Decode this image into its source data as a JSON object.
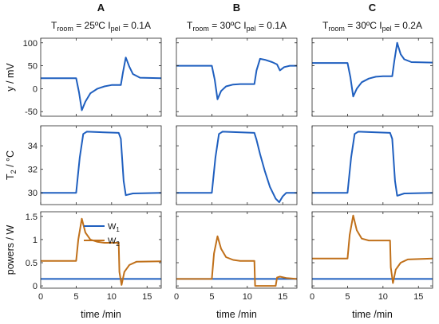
{
  "chart_data": {
    "type": "line",
    "columns": [
      {
        "letter": "A",
        "title": {
          "T": "T",
          "T_sub": "room",
          "T_val": " = 25ºC  ",
          "I": "I",
          "I_sub": "pel",
          "I_val": " = 0.1A"
        }
      },
      {
        "letter": "B",
        "title": {
          "T": "T",
          "T_sub": "room",
          "T_val": " = 30ºC  ",
          "I": "I",
          "I_sub": "pel",
          "I_val": " = 0.1A"
        }
      },
      {
        "letter": "C",
        "title": {
          "T": "T",
          "T_sub": "room",
          "T_val": " = 30ºC  ",
          "I": "I",
          "I_sub": "pel",
          "I_val": " = 0.2A"
        }
      }
    ],
    "xlabel": "time /min",
    "xlim": [
      0,
      17
    ],
    "xticks": [
      "0",
      "5",
      "10",
      "15"
    ],
    "rows": [
      {
        "ylabel": "y / mV",
        "ylim": [
          -60,
          110
        ],
        "yticks": [
          "100",
          "50",
          "0",
          "-50"
        ],
        "series": [
          {
            "color": "#1f5fbf",
            "panels": [
              [
                [
                  0,
                  23
                ],
                [
                  5,
                  23
                ],
                [
                  5.4,
                  -8
                ],
                [
                  5.8,
                  -47
                ],
                [
                  6.3,
                  -28
                ],
                [
                  7,
                  -10
                ],
                [
                  8,
                  0
                ],
                [
                  9,
                  5
                ],
                [
                  10,
                  8
                ],
                [
                  11.3,
                  8
                ],
                [
                  11.6,
                  35
                ],
                [
                  12,
                  68
                ],
                [
                  12.5,
                  48
                ],
                [
                  13,
                  32
                ],
                [
                  14,
                  24
                ],
                [
                  17,
                  23
                ]
              ],
              [
                [
                  0,
                  50
                ],
                [
                  5,
                  50
                ],
                [
                  5.4,
                  20
                ],
                [
                  5.8,
                  -23
                ],
                [
                  6.3,
                  -5
                ],
                [
                  7,
                  5
                ],
                [
                  8,
                  9
                ],
                [
                  9,
                  10
                ],
                [
                  10,
                  10
                ],
                [
                  11,
                  10
                ],
                [
                  11.3,
                  40
                ],
                [
                  11.8,
                  65
                ],
                [
                  12.5,
                  63
                ],
                [
                  13.5,
                  58
                ],
                [
                  14.2,
                  53
                ],
                [
                  14.6,
                  40
                ],
                [
                  15.2,
                  47
                ],
                [
                  16,
                  50
                ],
                [
                  17,
                  50
                ]
              ],
              [
                [
                  0,
                  56
                ],
                [
                  5,
                  56
                ],
                [
                  5.4,
                  25
                ],
                [
                  5.8,
                  -17
                ],
                [
                  6.3,
                  0
                ],
                [
                  7,
                  14
                ],
                [
                  8,
                  22
                ],
                [
                  9,
                  26
                ],
                [
                  10,
                  27
                ],
                [
                  11.3,
                  27
                ],
                [
                  11.6,
                  60
                ],
                [
                  12,
                  100
                ],
                [
                  12.5,
                  75
                ],
                [
                  13,
                  64
                ],
                [
                  14,
                  58
                ],
                [
                  17,
                  57
                ]
              ]
            ]
          }
        ]
      },
      {
        "ylabel": "T",
        "ylabel_sub": "2",
        "ylabel_rest": " / °C",
        "ylim": [
          29,
          35.7
        ],
        "yticks": [
          "34",
          "32",
          "30"
        ],
        "series": [
          {
            "color": "#1f5fbf",
            "panels": [
              [
                [
                  0,
                  30
                ],
                [
                  5,
                  30
                ],
                [
                  5.5,
                  33
                ],
                [
                  6,
                  35
                ],
                [
                  6.5,
                  35.2
                ],
                [
                  11,
                  35.1
                ],
                [
                  11.3,
                  34.6
                ],
                [
                  11.7,
                  31
                ],
                [
                  12,
                  29.8
                ],
                [
                  13,
                  29.95
                ],
                [
                  17,
                  30
                ]
              ],
              [
                [
                  0,
                  30
                ],
                [
                  5,
                  30
                ],
                [
                  5.5,
                  33
                ],
                [
                  6,
                  35
                ],
                [
                  6.5,
                  35.2
                ],
                [
                  11,
                  35.1
                ],
                [
                  11.3,
                  34.5
                ],
                [
                  11.8,
                  33.3
                ],
                [
                  12.5,
                  31.8
                ],
                [
                  13.2,
                  30.5
                ],
                [
                  14,
                  29.5
                ],
                [
                  14.5,
                  29.2
                ],
                [
                  15,
                  29.7
                ],
                [
                  15.5,
                  30
                ],
                [
                  17,
                  30
                ]
              ],
              [
                [
                  0,
                  30
                ],
                [
                  5,
                  30
                ],
                [
                  5.5,
                  33
                ],
                [
                  6,
                  35
                ],
                [
                  6.5,
                  35.2
                ],
                [
                  11,
                  35.1
                ],
                [
                  11.3,
                  34.6
                ],
                [
                  11.7,
                  31
                ],
                [
                  12,
                  29.75
                ],
                [
                  13,
                  29.95
                ],
                [
                  17,
                  30
                ]
              ]
            ]
          }
        ]
      },
      {
        "ylabel": "powers / W",
        "ylim": [
          -0.05,
          1.6
        ],
        "yticks": [
          "1.5",
          "1",
          "0.5",
          "0"
        ],
        "legend": {
          "location": "upper-left-inset",
          "entries": [
            {
              "name": "W",
              "sub": "1",
              "color": "#1f5fbf"
            },
            {
              "name": "W",
              "sub": "2",
              "color": "#c0701a"
            }
          ]
        },
        "series": [
          {
            "name": "W1",
            "color": "#1f5fbf",
            "panels": [
              [
                [
                  0,
                  0.15
                ],
                [
                  17,
                  0.15
                ]
              ],
              [
                [
                  0,
                  0.15
                ],
                [
                  17,
                  0.15
                ]
              ],
              [
                [
                  0,
                  0.15
                ],
                [
                  17,
                  0.15
                ]
              ]
            ]
          },
          {
            "name": "W2",
            "color": "#c0701a",
            "panels": [
              [
                [
                  0,
                  0.54
                ],
                [
                  5,
                  0.54
                ],
                [
                  5.3,
                  1.0
                ],
                [
                  5.8,
                  1.45
                ],
                [
                  6.3,
                  1.15
                ],
                [
                  7,
                  1.0
                ],
                [
                  8,
                  0.95
                ],
                [
                  9,
                  0.93
                ],
                [
                  11,
                  0.93
                ],
                [
                  11.1,
                  0.3
                ],
                [
                  11.4,
                  0.02
                ],
                [
                  11.8,
                  0.3
                ],
                [
                  12.5,
                  0.45
                ],
                [
                  13.5,
                  0.52
                ],
                [
                  17,
                  0.53
                ]
              ],
              [
                [
                  0,
                  0.15
                ],
                [
                  5,
                  0.15
                ],
                [
                  5.3,
                  0.7
                ],
                [
                  5.8,
                  1.07
                ],
                [
                  6.3,
                  0.8
                ],
                [
                  7,
                  0.62
                ],
                [
                  8,
                  0.56
                ],
                [
                  9,
                  0.54
                ],
                [
                  11,
                  0.54
                ],
                [
                  11.1,
                  0
                ],
                [
                  14,
                  0
                ],
                [
                  14.2,
                  0.18
                ],
                [
                  14.6,
                  0.2
                ],
                [
                  15.5,
                  0.17
                ],
                [
                  17,
                  0.15
                ]
              ],
              [
                [
                  0,
                  0.59
                ],
                [
                  5,
                  0.59
                ],
                [
                  5.3,
                  1.1
                ],
                [
                  5.8,
                  1.52
                ],
                [
                  6.3,
                  1.2
                ],
                [
                  7,
                  1.02
                ],
                [
                  8,
                  0.98
                ],
                [
                  11,
                  0.98
                ],
                [
                  11.1,
                  0.4
                ],
                [
                  11.4,
                  0.06
                ],
                [
                  11.8,
                  0.35
                ],
                [
                  12.5,
                  0.5
                ],
                [
                  13.5,
                  0.57
                ],
                [
                  17,
                  0.59
                ]
              ]
            ]
          }
        ]
      }
    ]
  }
}
